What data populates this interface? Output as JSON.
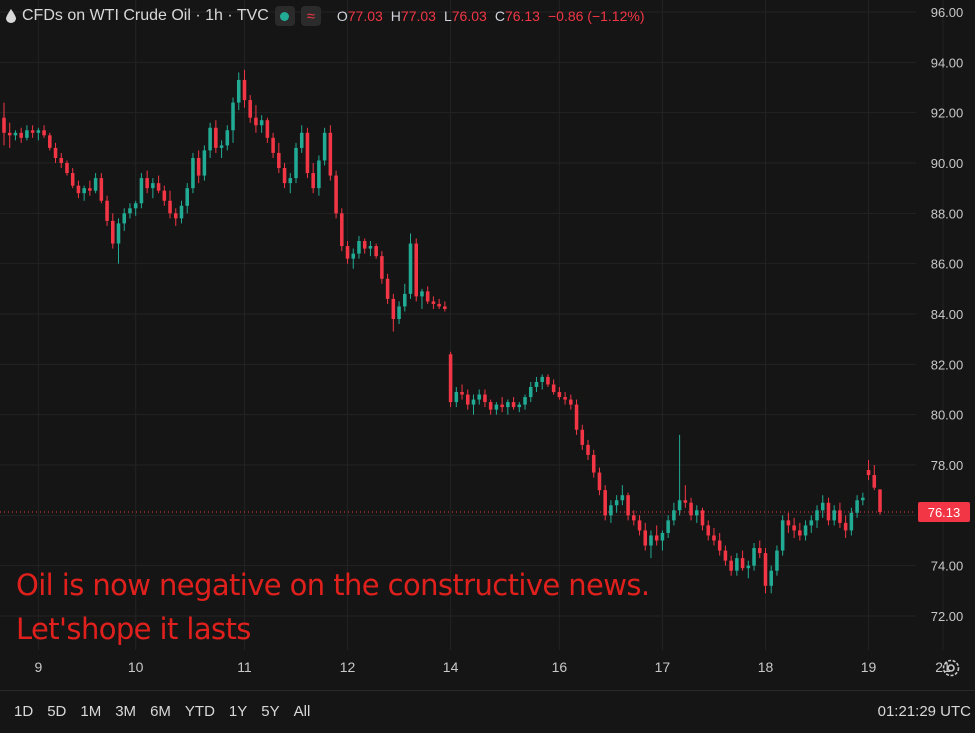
{
  "legend": {
    "symbol_title": "CFDs on WTI Crude Oil · 1h · TVC",
    "open_label": "O",
    "open": "77.03",
    "high_label": "H",
    "high": "77.03",
    "low_label": "L",
    "low": "76.03",
    "close_label": "C",
    "close": "76.13",
    "change": "−0.86 (−1.12%)"
  },
  "annotation": {
    "line1": "Oil is now negative on the constructive news.",
    "line2": "Let'shope it lasts"
  },
  "range_buttons": [
    "1D",
    "5D",
    "1M",
    "3M",
    "6M",
    "YTD",
    "1Y",
    "5Y",
    "All"
  ],
  "clock": "01:21:29 UTC",
  "colors": {
    "up": "#22ab94",
    "down": "#f23645",
    "background": "#151515",
    "grid": "#232323",
    "annotation": "#e0201c"
  },
  "chart_data": {
    "type": "candlestick",
    "ylim": [
      71.0,
      96.0
    ],
    "yticks": [
      "96.00",
      "94.00",
      "92.00",
      "90.00",
      "88.00",
      "86.00",
      "84.00",
      "82.00",
      "80.00",
      "78.00",
      "76.00",
      "74.00",
      "72.00"
    ],
    "ytick_values": [
      96,
      94,
      92,
      90,
      88,
      86,
      84,
      82,
      80,
      78,
      76,
      74,
      72
    ],
    "xticks": [
      "9",
      "10",
      "11",
      "12",
      "14",
      "16",
      "17",
      "18",
      "19",
      "21"
    ],
    "xtick_index": [
      6,
      23,
      42,
      60,
      78,
      97,
      115,
      133,
      151,
      164
    ],
    "last_price": "76.13",
    "last_price_value": 76.13,
    "ohlc": [
      [
        91.8,
        92.4,
        90.7,
        91.2
      ],
      [
        91.2,
        91.6,
        90.6,
        91.1
      ],
      [
        91.1,
        91.3,
        90.9,
        91.2
      ],
      [
        91.2,
        91.4,
        90.8,
        91.0
      ],
      [
        91.0,
        91.5,
        90.9,
        91.3
      ],
      [
        91.3,
        91.5,
        91.0,
        91.2
      ],
      [
        91.2,
        91.4,
        90.9,
        91.3
      ],
      [
        91.3,
        91.5,
        91.0,
        91.1
      ],
      [
        91.1,
        91.2,
        90.5,
        90.6
      ],
      [
        90.6,
        90.8,
        90.0,
        90.2
      ],
      [
        90.2,
        90.4,
        89.8,
        90.0
      ],
      [
        90.0,
        90.1,
        89.5,
        89.6
      ],
      [
        89.6,
        89.8,
        89.0,
        89.1
      ],
      [
        89.1,
        89.3,
        88.6,
        88.8
      ],
      [
        88.8,
        89.1,
        88.5,
        89.0
      ],
      [
        89.0,
        89.3,
        88.7,
        88.9
      ],
      [
        88.9,
        89.6,
        88.8,
        89.4
      ],
      [
        89.4,
        89.6,
        88.4,
        88.5
      ],
      [
        88.5,
        88.7,
        87.5,
        87.7
      ],
      [
        87.7,
        88.0,
        86.6,
        86.8
      ],
      [
        86.8,
        87.8,
        86.0,
        87.6
      ],
      [
        87.6,
        88.2,
        87.3,
        88.0
      ],
      [
        88.0,
        88.4,
        87.8,
        88.2
      ],
      [
        88.2,
        88.5,
        87.9,
        88.4
      ],
      [
        88.4,
        89.6,
        88.2,
        89.4
      ],
      [
        89.4,
        89.7,
        88.8,
        89.0
      ],
      [
        89.0,
        89.4,
        88.6,
        89.2
      ],
      [
        89.2,
        89.5,
        88.8,
        88.9
      ],
      [
        88.9,
        89.1,
        88.3,
        88.5
      ],
      [
        88.5,
        88.9,
        87.8,
        88.0
      ],
      [
        88.0,
        88.2,
        87.5,
        87.8
      ],
      [
        87.8,
        88.5,
        87.6,
        88.3
      ],
      [
        88.3,
        89.2,
        88.0,
        89.0
      ],
      [
        89.0,
        90.4,
        88.8,
        90.2
      ],
      [
        90.2,
        90.5,
        89.2,
        89.5
      ],
      [
        89.5,
        90.7,
        89.3,
        90.5
      ],
      [
        90.5,
        91.6,
        90.2,
        91.4
      ],
      [
        91.4,
        91.7,
        90.4,
        90.6
      ],
      [
        90.6,
        90.9,
        90.2,
        90.7
      ],
      [
        90.7,
        91.5,
        90.5,
        91.3
      ],
      [
        91.3,
        92.6,
        90.8,
        92.4
      ],
      [
        92.4,
        93.6,
        92.1,
        93.3
      ],
      [
        93.3,
        93.7,
        92.2,
        92.5
      ],
      [
        92.5,
        92.7,
        91.6,
        91.8
      ],
      [
        91.8,
        92.3,
        91.2,
        91.5
      ],
      [
        91.5,
        91.9,
        91.2,
        91.7
      ],
      [
        91.7,
        91.8,
        90.8,
        91.0
      ],
      [
        91.0,
        91.2,
        90.2,
        90.4
      ],
      [
        90.4,
        90.8,
        89.6,
        89.8
      ],
      [
        89.8,
        90.0,
        89.0,
        89.2
      ],
      [
        89.2,
        89.6,
        88.8,
        89.4
      ],
      [
        89.4,
        90.8,
        89.2,
        90.6
      ],
      [
        90.6,
        91.5,
        90.4,
        91.2
      ],
      [
        91.2,
        91.4,
        89.4,
        89.6
      ],
      [
        89.6,
        90.0,
        88.8,
        89.0
      ],
      [
        89.0,
        90.3,
        88.7,
        90.1
      ],
      [
        90.1,
        91.4,
        89.9,
        91.2
      ],
      [
        91.2,
        91.5,
        89.3,
        89.5
      ],
      [
        89.5,
        89.7,
        87.8,
        88.0
      ],
      [
        88.0,
        88.2,
        86.5,
        86.7
      ],
      [
        86.7,
        86.9,
        86.0,
        86.2
      ],
      [
        86.2,
        86.6,
        85.8,
        86.4
      ],
      [
        86.4,
        87.1,
        86.2,
        86.9
      ],
      [
        86.9,
        87.0,
        86.4,
        86.6
      ],
      [
        86.6,
        86.9,
        86.3,
        86.7
      ],
      [
        86.7,
        86.8,
        86.2,
        86.3
      ],
      [
        86.3,
        86.5,
        85.2,
        85.4
      ],
      [
        85.4,
        85.6,
        84.4,
        84.6
      ],
      [
        84.6,
        84.8,
        83.3,
        83.8
      ],
      [
        83.8,
        84.5,
        83.6,
        84.3
      ],
      [
        84.3,
        85.2,
        84.1,
        84.8
      ],
      [
        84.8,
        87.2,
        84.6,
        86.8
      ],
      [
        86.8,
        87.0,
        84.5,
        84.7
      ],
      [
        84.7,
        85.0,
        84.2,
        84.9
      ],
      [
        84.9,
        85.1,
        84.4,
        84.5
      ],
      [
        84.5,
        84.7,
        84.2,
        84.4
      ],
      [
        84.4,
        84.6,
        84.2,
        84.3
      ],
      [
        84.3,
        84.5,
        84.1,
        84.2
      ],
      [
        82.4,
        82.5,
        80.3,
        80.5
      ],
      [
        80.5,
        81.1,
        80.3,
        80.9
      ],
      [
        80.9,
        81.2,
        80.6,
        80.8
      ],
      [
        80.8,
        81.0,
        80.2,
        80.4
      ],
      [
        80.4,
        80.8,
        80.0,
        80.6
      ],
      [
        80.6,
        81.0,
        80.4,
        80.8
      ],
      [
        80.8,
        81.0,
        80.3,
        80.5
      ],
      [
        80.5,
        80.6,
        80.0,
        80.2
      ],
      [
        80.2,
        80.5,
        80.0,
        80.4
      ],
      [
        80.4,
        80.7,
        80.1,
        80.3
      ],
      [
        80.3,
        80.6,
        80.0,
        80.5
      ],
      [
        80.5,
        80.7,
        80.2,
        80.3
      ],
      [
        80.3,
        80.5,
        80.1,
        80.4
      ],
      [
        80.4,
        80.8,
        80.2,
        80.7
      ],
      [
        80.7,
        81.3,
        80.5,
        81.1
      ],
      [
        81.1,
        81.5,
        80.9,
        81.3
      ],
      [
        81.3,
        81.6,
        81.0,
        81.5
      ],
      [
        81.5,
        81.6,
        81.1,
        81.2
      ],
      [
        81.2,
        81.4,
        80.8,
        80.9
      ],
      [
        80.9,
        81.1,
        80.6,
        80.7
      ],
      [
        80.7,
        80.9,
        80.4,
        80.6
      ],
      [
        80.6,
        80.8,
        80.2,
        80.4
      ],
      [
        80.4,
        80.6,
        79.2,
        79.4
      ],
      [
        79.4,
        79.6,
        78.6,
        78.8
      ],
      [
        78.8,
        79.0,
        78.2,
        78.4
      ],
      [
        78.4,
        78.6,
        77.5,
        77.7
      ],
      [
        77.7,
        77.9,
        76.8,
        77.0
      ],
      [
        77.0,
        77.2,
        75.8,
        76.0
      ],
      [
        76.0,
        76.6,
        75.7,
        76.4
      ],
      [
        76.4,
        76.8,
        76.1,
        76.6
      ],
      [
        76.6,
        77.2,
        76.4,
        76.8
      ],
      [
        76.8,
        76.9,
        75.8,
        76.0
      ],
      [
        76.0,
        76.2,
        75.6,
        75.8
      ],
      [
        75.8,
        76.0,
        75.2,
        75.4
      ],
      [
        75.4,
        75.7,
        74.6,
        74.8
      ],
      [
        74.8,
        75.4,
        74.3,
        75.2
      ],
      [
        75.2,
        75.6,
        74.8,
        75.0
      ],
      [
        75.0,
        75.4,
        74.6,
        75.3
      ],
      [
        75.3,
        76.0,
        75.1,
        75.8
      ],
      [
        75.8,
        76.5,
        75.6,
        76.2
      ],
      [
        76.2,
        79.2,
        76.0,
        76.6
      ],
      [
        76.6,
        77.2,
        76.3,
        76.5
      ],
      [
        76.5,
        76.7,
        75.8,
        76.0
      ],
      [
        76.0,
        76.4,
        75.7,
        76.2
      ],
      [
        76.2,
        76.3,
        75.4,
        75.6
      ],
      [
        75.6,
        75.8,
        75.0,
        75.2
      ],
      [
        75.2,
        75.5,
        74.8,
        75.0
      ],
      [
        75.0,
        75.3,
        74.4,
        74.6
      ],
      [
        74.6,
        74.8,
        74.0,
        74.2
      ],
      [
        74.2,
        74.4,
        73.6,
        73.8
      ],
      [
        73.8,
        74.5,
        73.6,
        74.3
      ],
      [
        74.3,
        74.6,
        73.8,
        73.9
      ],
      [
        73.9,
        74.2,
        73.5,
        74.0
      ],
      [
        74.0,
        74.9,
        73.8,
        74.7
      ],
      [
        74.7,
        75.0,
        74.3,
        74.5
      ],
      [
        74.5,
        74.7,
        72.9,
        73.2
      ],
      [
        73.2,
        74.0,
        72.9,
        73.8
      ],
      [
        73.8,
        74.8,
        73.6,
        74.6
      ],
      [
        74.6,
        76.0,
        74.4,
        75.8
      ],
      [
        75.8,
        76.1,
        75.3,
        75.6
      ],
      [
        75.6,
        75.9,
        75.1,
        75.4
      ],
      [
        75.4,
        75.7,
        75.0,
        75.2
      ],
      [
        75.2,
        75.8,
        75.0,
        75.6
      ],
      [
        75.6,
        76.0,
        75.3,
        75.8
      ],
      [
        75.8,
        76.4,
        75.5,
        76.2
      ],
      [
        76.2,
        76.8,
        75.9,
        76.5
      ],
      [
        76.5,
        76.7,
        75.6,
        75.8
      ],
      [
        75.8,
        76.4,
        75.6,
        76.2
      ],
      [
        76.2,
        76.5,
        75.5,
        75.7
      ],
      [
        75.7,
        76.0,
        75.1,
        75.4
      ],
      [
        75.4,
        76.3,
        75.2,
        76.1
      ],
      [
        76.1,
        76.8,
        75.9,
        76.6
      ],
      [
        76.6,
        76.9,
        76.4,
        76.7
      ],
      [
        77.8,
        78.2,
        77.4,
        77.6
      ],
      [
        77.6,
        78.0,
        77.0,
        77.1
      ],
      [
        77.03,
        77.03,
        76.03,
        76.13
      ]
    ]
  }
}
